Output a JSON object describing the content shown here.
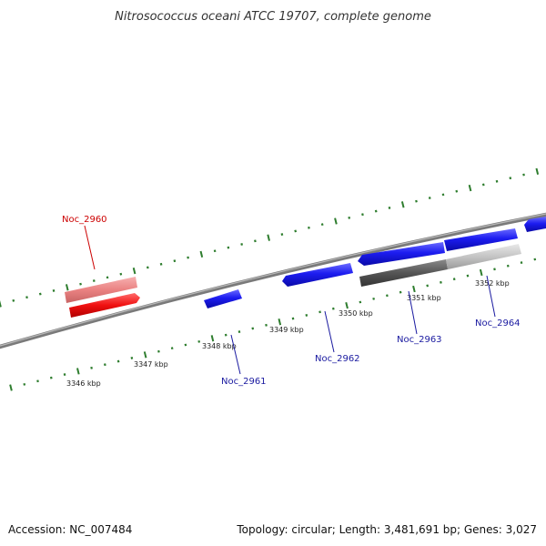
{
  "title": "Nitrosococcus oceani ATCC 19707, complete genome",
  "footer": {
    "accession": "Accession: NC_007484",
    "summary": "Topology: circular; Length: 3,481,691 bp; Genes: 3,027"
  },
  "scale_labels": [
    "3346 kbp",
    "3347 kbp",
    "3348 kbp",
    "3349 kbp",
    "3350 kbp",
    "3351 kbp",
    "3352 kbp"
  ],
  "gene_labels": {
    "noc_2960": "Noc_2960",
    "noc_2961": "Noc_2961",
    "noc_2962": "Noc_2962",
    "noc_2963": "Noc_2963",
    "noc_2964": "Noc_2964"
  },
  "colors": {
    "forward_gene": "#1414e8",
    "reverse_gene": "#e01010",
    "reverse_gene_light": "#e88080",
    "backbone": "#888888",
    "ticks": "#2e7d2e",
    "highlight_label": "#cc0000",
    "gene_label": "#1a1aa0"
  }
}
